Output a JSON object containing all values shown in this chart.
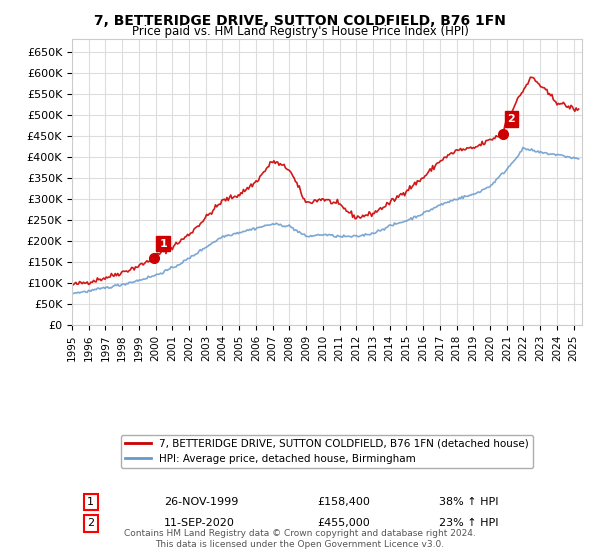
{
  "title": "7, BETTERIDGE DRIVE, SUTTON COLDFIELD, B76 1FN",
  "subtitle": "Price paid vs. HM Land Registry's House Price Index (HPI)",
  "ylabel_prefix": "£",
  "ylim": [
    0,
    680000
  ],
  "yticks": [
    0,
    50000,
    100000,
    150000,
    200000,
    250000,
    300000,
    350000,
    400000,
    450000,
    500000,
    550000,
    600000,
    650000
  ],
  "xlim_start": 1995.0,
  "xlim_end": 2025.5,
  "bg_color": "#ffffff",
  "grid_color": "#dddddd",
  "red_color": "#cc0000",
  "blue_color": "#6699cc",
  "purchase1": {
    "date": "26-NOV-1999",
    "price": 158400,
    "label": "1",
    "pct": "38%",
    "dir": "↑"
  },
  "purchase2": {
    "date": "11-SEP-2020",
    "price": 455000,
    "label": "2",
    "pct": "23%",
    "dir": "↑"
  },
  "legend_line1": "7, BETTERIDGE DRIVE, SUTTON COLDFIELD, B76 1FN (detached house)",
  "legend_line2": "HPI: Average price, detached house, Birmingham",
  "footer": "Contains HM Land Registry data © Crown copyright and database right 2024.\nThis data is licensed under the Open Government Licence v3.0."
}
